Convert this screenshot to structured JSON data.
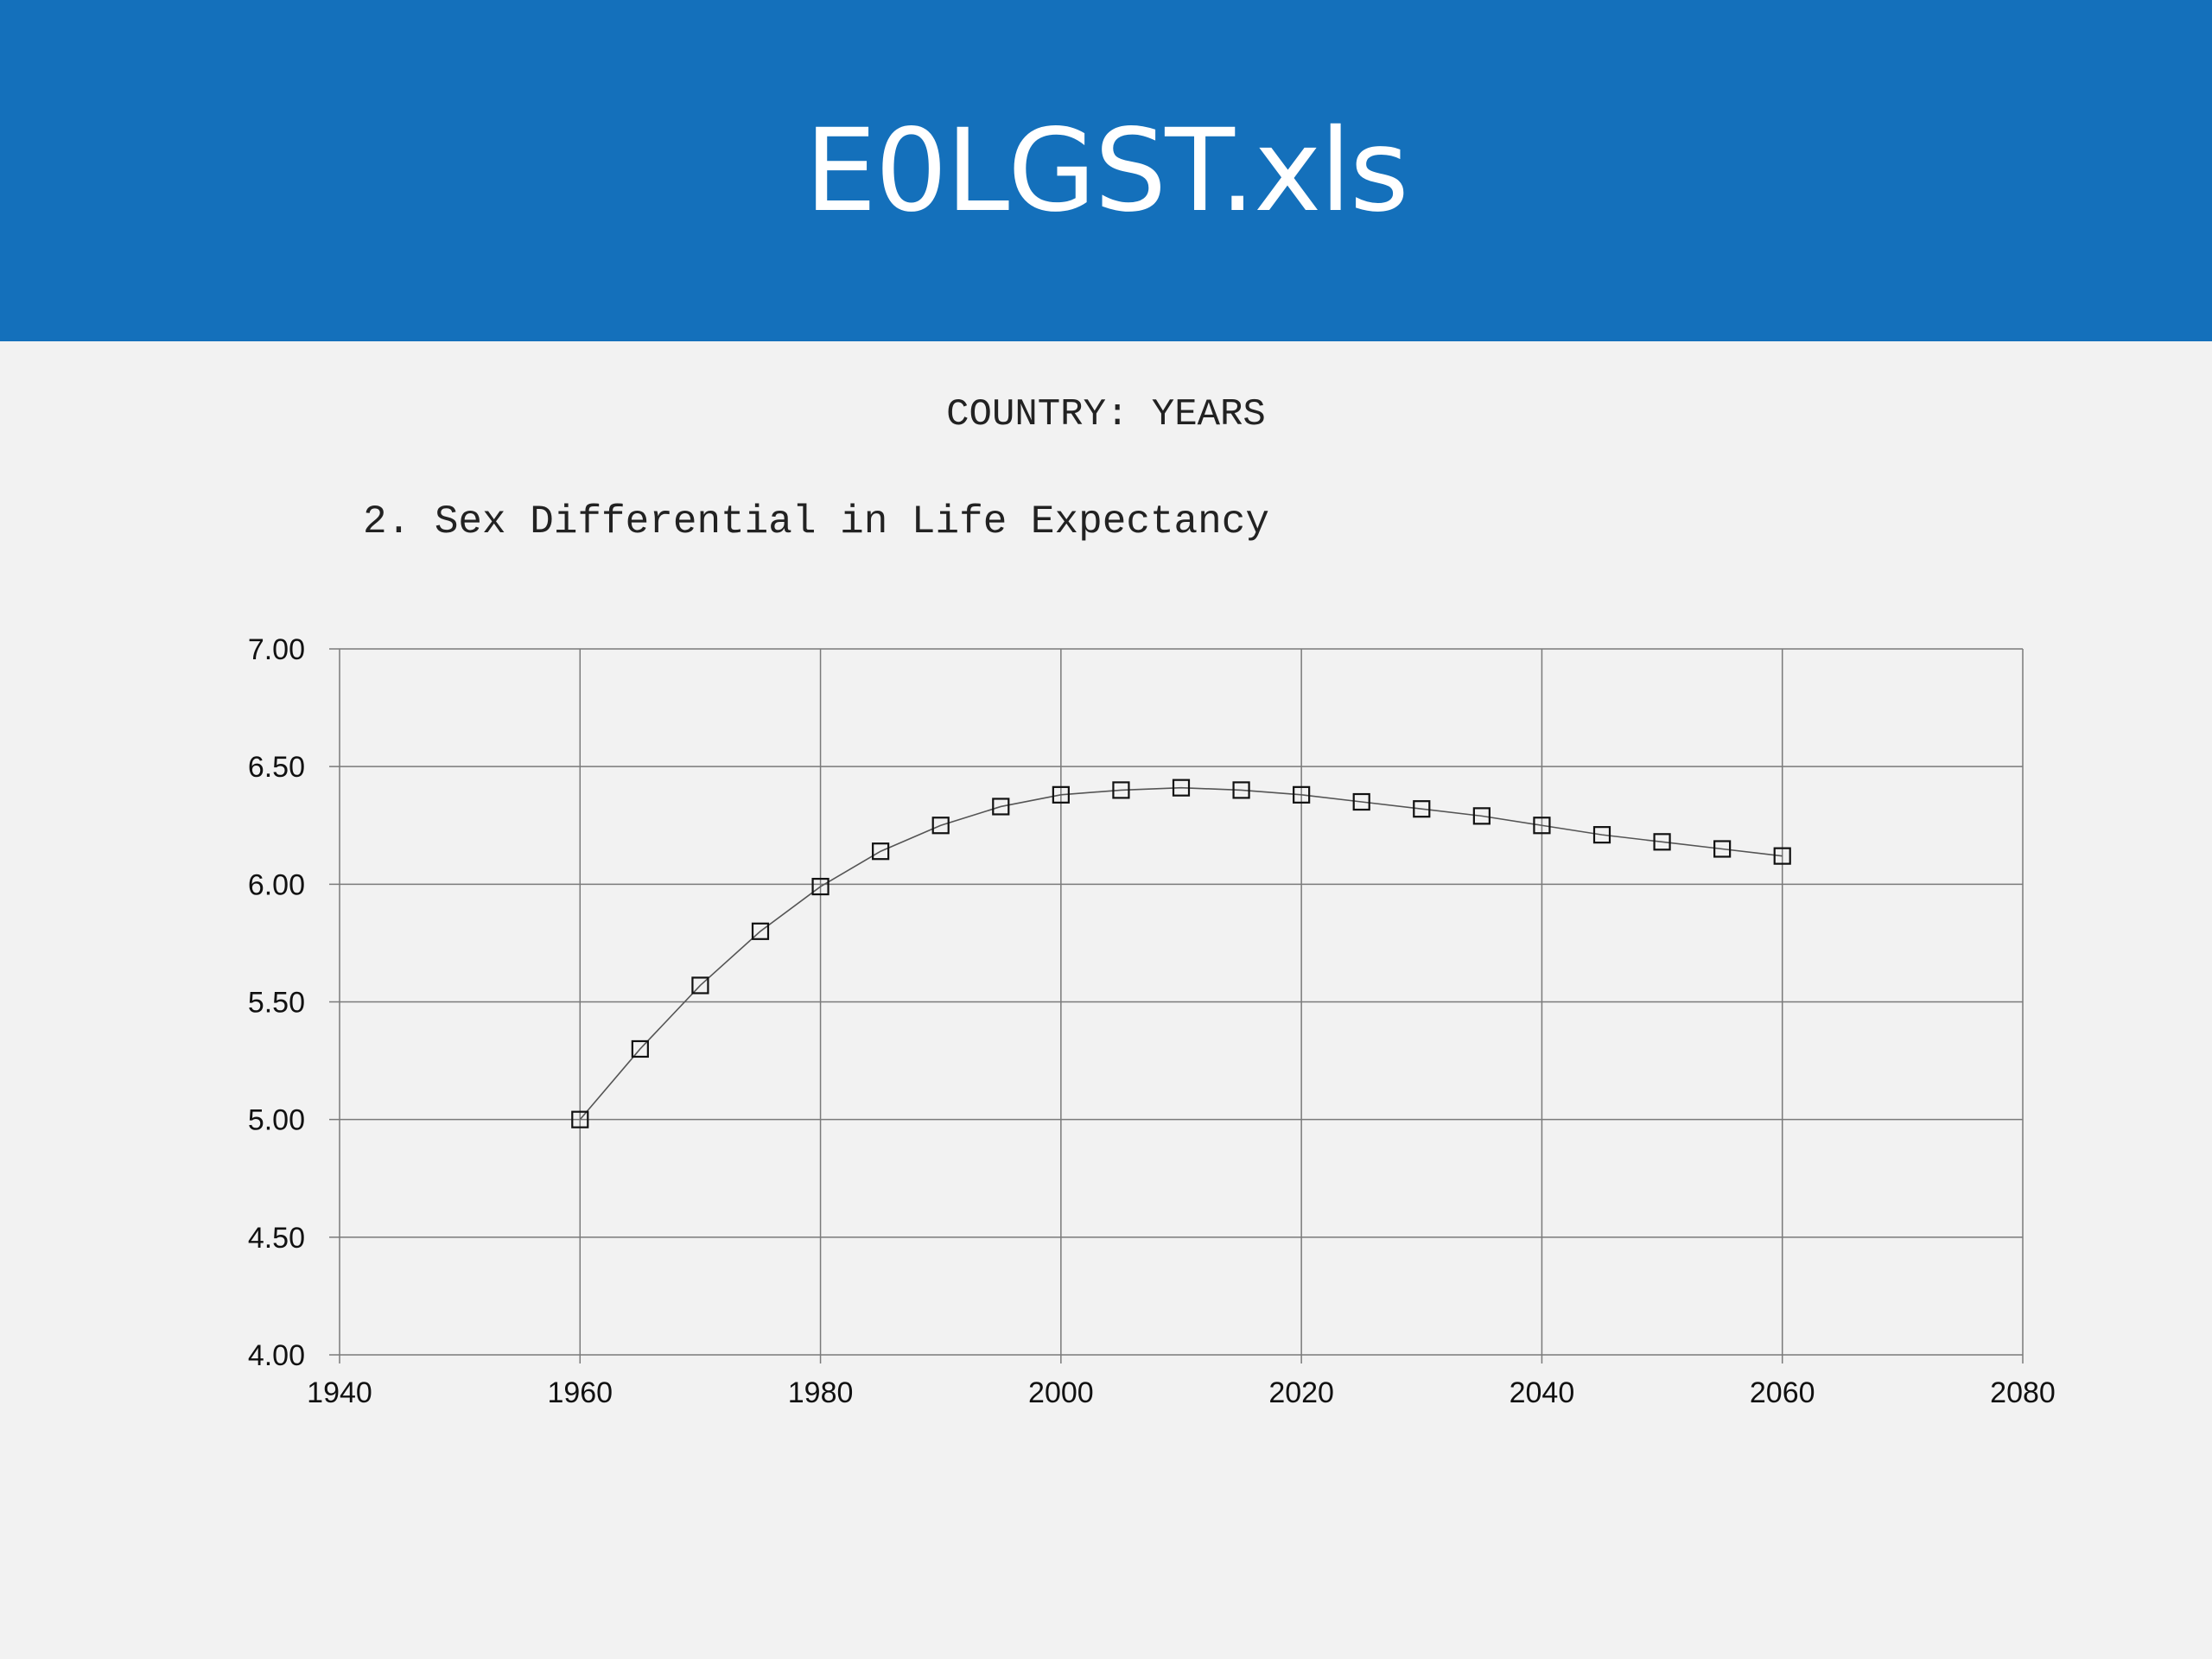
{
  "header": {
    "title": "E0LGST.xls"
  },
  "chart_data": {
    "type": "line",
    "subtitle": "COUNTRY: YEARS",
    "title": "2. Sex Differential in Life Expectancy",
    "xlabel": "",
    "ylabel": "",
    "xlim": [
      1940,
      2080
    ],
    "ylim": [
      4.0,
      7.0
    ],
    "x_ticks": [
      "1940",
      "1960",
      "1980",
      "2000",
      "2020",
      "2040",
      "2060",
      "2080"
    ],
    "y_ticks": [
      "4.00",
      "4.50",
      "5.00",
      "5.50",
      "6.00",
      "6.50",
      "7.00"
    ],
    "grid": true,
    "marker": "square",
    "x": [
      1960,
      1965,
      1970,
      1975,
      1980,
      1985,
      1990,
      1995,
      2000,
      2005,
      2010,
      2015,
      2020,
      2025,
      2030,
      2035,
      2040,
      2045,
      2050,
      2055,
      2060
    ],
    "y": [
      5.0,
      5.3,
      5.57,
      5.8,
      5.99,
      6.14,
      6.25,
      6.33,
      6.38,
      6.4,
      6.41,
      6.4,
      6.38,
      6.35,
      6.32,
      6.29,
      6.25,
      6.21,
      6.18,
      6.15,
      6.12
    ]
  }
}
